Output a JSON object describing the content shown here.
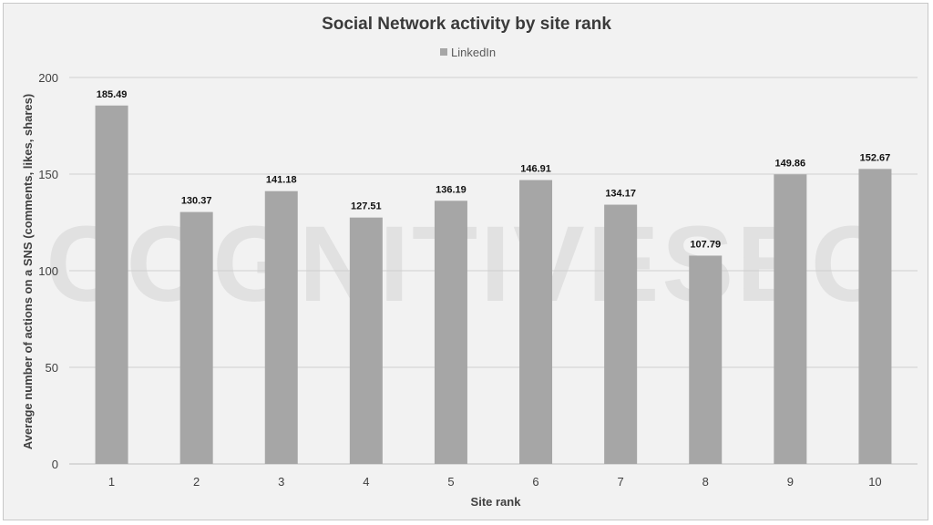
{
  "chart_data": {
    "type": "bar",
    "title": "Social Network activity by site rank",
    "xlabel": "Site rank",
    "ylabel": "Average number of actions on a SNS (comments, likes, shares)",
    "categories": [
      "1",
      "2",
      "3",
      "4",
      "5",
      "6",
      "7",
      "8",
      "9",
      "10"
    ],
    "series": [
      {
        "name": "LinkedIn",
        "values": [
          185.49,
          130.37,
          141.18,
          127.51,
          136.19,
          146.91,
          134.17,
          107.79,
          149.86,
          152.67
        ],
        "color": "#a6a6a6"
      }
    ],
    "yticks": [
      0,
      50,
      100,
      150,
      200
    ],
    "ylim": [
      0,
      200
    ],
    "grid": true,
    "legend_position": "top-center",
    "watermark": "COGNITIVESEO"
  }
}
